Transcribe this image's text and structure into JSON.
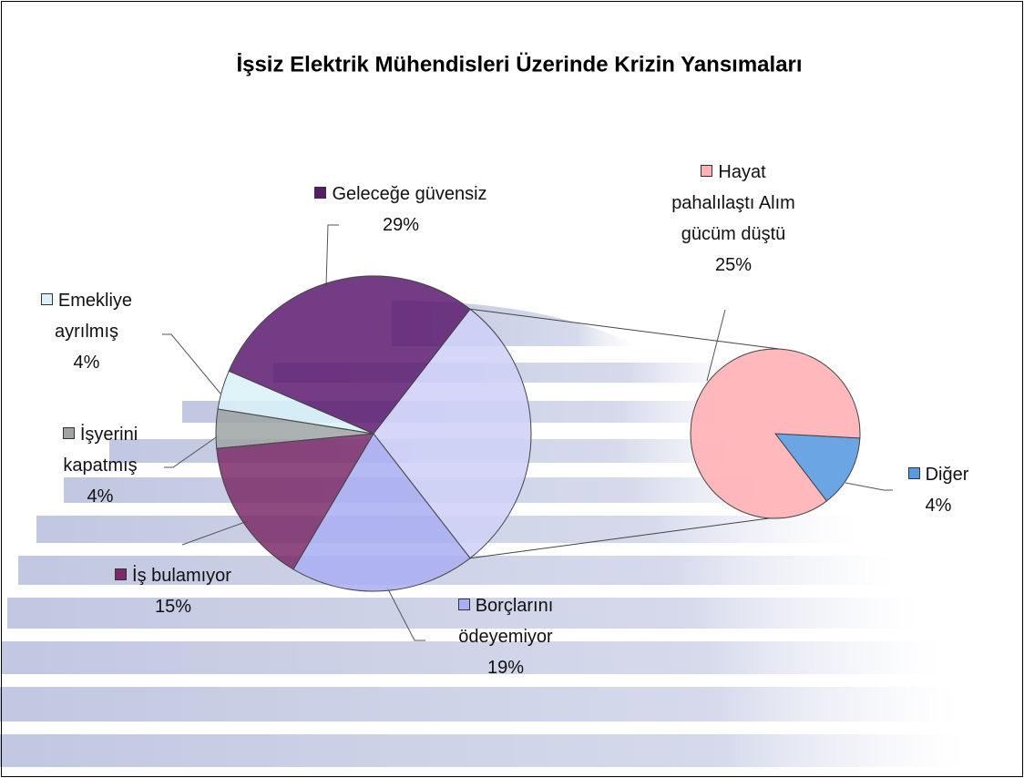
{
  "chart_data": {
    "type": "pie-of-pie",
    "title": "İşsiz Elektrik Mühendisleri Üzerinde Krizin Yansımaları",
    "main": {
      "categories": [
        "Borçlarını ödeyemiyor",
        "İş bulamıyor",
        "İşyerini kapatmış",
        "Emekliye ayrılmış",
        "Geleceğe güvensiz"
      ],
      "values": [
        19,
        15,
        4,
        4,
        29
      ],
      "value_labels": [
        "19%",
        "15%",
        "4%",
        "4%",
        "29%"
      ],
      "colors": [
        "#a9aef2",
        "#7b2b68",
        "#9ea3a3",
        "#d9f2f8",
        "#5c1a6e"
      ]
    },
    "secondary": {
      "categories": [
        "Hayat pahalılaştı Alım gücüm düştü",
        "Diğer"
      ],
      "values": [
        25,
        4
      ],
      "value_labels": [
        "25%",
        "4%"
      ],
      "colors": [
        "#ffb1b6",
        "#5b9be0"
      ]
    }
  }
}
